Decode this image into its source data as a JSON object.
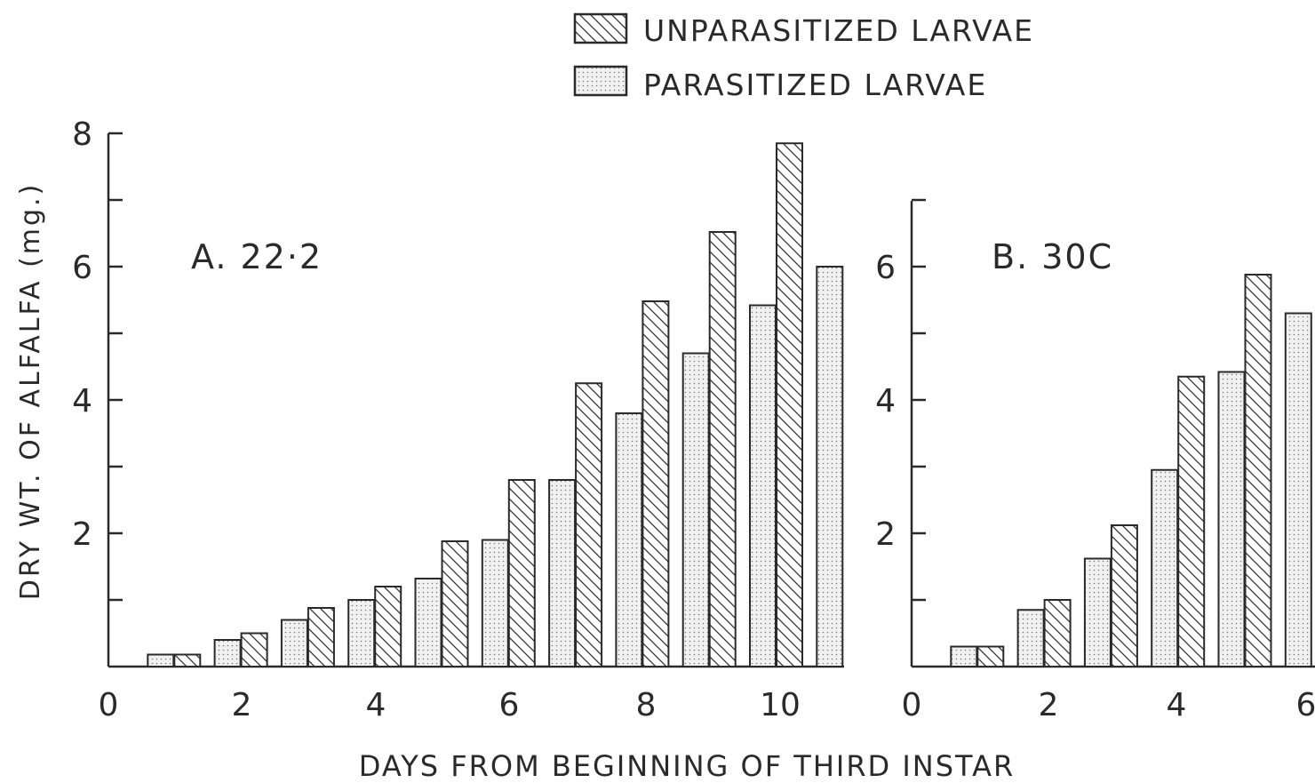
{
  "chart_data": {
    "type": "bar",
    "ylabel": "DRY WT. OF ALFALFA (mg.)",
    "xlabel": "DAYS FROM BEGINNING OF THIRD INSTAR",
    "legend": {
      "placement": "top-right",
      "entries": [
        {
          "name": "UNPARASITIZED LARVAE",
          "pattern": "diagonal-hatch"
        },
        {
          "name": "PARASITIZED LARVAE",
          "pattern": "stipple"
        }
      ]
    },
    "panels": [
      {
        "title": "A. 22·2",
        "x_ticks": [
          "0",
          "2",
          "4",
          "6",
          "8",
          "10"
        ],
        "y_ticks": [
          "2",
          "4",
          "6",
          "8"
        ],
        "ylim": [
          0,
          8
        ],
        "days": [
          1,
          2,
          3,
          4,
          5,
          6,
          7,
          8,
          9,
          10,
          11
        ],
        "series": [
          {
            "name": "PARASITIZED LARVAE",
            "values": [
              0.18,
              0.4,
              0.7,
              1.0,
              1.32,
              1.9,
              2.8,
              3.8,
              4.7,
              5.42,
              6.0
            ]
          },
          {
            "name": "UNPARASITIZED LARVAE",
            "values": [
              0.18,
              0.5,
              0.88,
              1.2,
              1.88,
              2.8,
              4.25,
              5.48,
              6.52,
              7.85,
              null
            ]
          }
        ]
      },
      {
        "title": "B. 30C",
        "x_ticks": [
          "0",
          "2",
          "4",
          "6"
        ],
        "y_ticks": [
          "2",
          "4",
          "6"
        ],
        "ylim": [
          0,
          7
        ],
        "days": [
          1,
          2,
          3,
          4,
          5,
          6
        ],
        "series": [
          {
            "name": "PARASITIZED LARVAE",
            "values": [
              0.3,
              0.85,
              1.62,
              2.95,
              4.42,
              5.3
            ]
          },
          {
            "name": "UNPARASITIZED LARVAE",
            "values": [
              0.3,
              1.0,
              2.12,
              4.35,
              5.88,
              null
            ]
          }
        ]
      }
    ]
  }
}
